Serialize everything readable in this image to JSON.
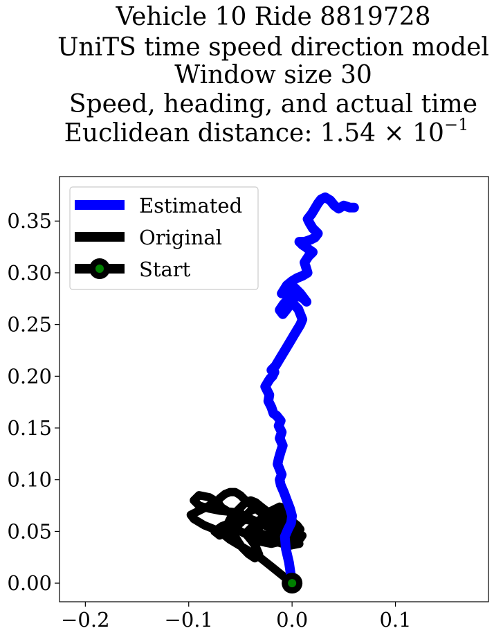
{
  "chart_data": {
    "type": "line",
    "title_lines": [
      "Vehicle 10 Ride 8819728",
      "UniTS time speed direction model",
      "Window size 30",
      "Speed, heading, and actual time",
      "Euclidean distance: 1.54 × 10^-1"
    ],
    "title_main": "Euclidean distance: 1.54 × 10",
    "title_exp": "−1",
    "xlim": [
      -0.225,
      0.19
    ],
    "ylim": [
      -0.018,
      0.393
    ],
    "x_ticks": [
      -0.2,
      -0.1,
      0.0,
      0.1
    ],
    "x_tick_labels": [
      "−0.2",
      "−0.1",
      "0.0",
      "0.1"
    ],
    "y_ticks": [
      0.0,
      0.05,
      0.1,
      0.15,
      0.2,
      0.25,
      0.3,
      0.35
    ],
    "y_tick_labels": [
      "0.00",
      "0.05",
      "0.10",
      "0.15",
      "0.20",
      "0.25",
      "0.30",
      "0.35"
    ],
    "grid": false,
    "legend_position": "top-left",
    "legend": [
      {
        "label": "Estimated",
        "color": "#0000ff"
      },
      {
        "label": "Original",
        "color": "#000000"
      },
      {
        "label": "Start",
        "color": "#000000",
        "marker_color": "#008000"
      }
    ],
    "series": [
      {
        "name": "Estimated",
        "color": "#0000ff",
        "x": [
          0.0,
          -0.003,
          -0.006,
          -0.007,
          -0.004,
          -0.001,
          0.0,
          -0.002,
          -0.005,
          -0.008,
          -0.011,
          -0.012,
          -0.01,
          -0.012,
          -0.014,
          -0.013,
          -0.011,
          -0.009,
          -0.012,
          -0.01,
          -0.013,
          -0.011,
          -0.015,
          -0.018,
          -0.02,
          -0.023,
          -0.022,
          -0.024,
          -0.026,
          -0.023,
          -0.021,
          -0.019,
          -0.017,
          -0.02,
          -0.016,
          -0.013,
          -0.01,
          -0.007,
          -0.004,
          -0.001,
          0.002,
          0.005,
          0.008,
          0.01,
          0.008,
          0.006,
          0.003,
          0.0,
          -0.005,
          -0.009,
          -0.012,
          -0.008,
          -0.004,
          0.0,
          0.004,
          0.01,
          0.014,
          0.008,
          0.003,
          -0.005,
          -0.01,
          -0.005,
          0.0,
          0.005,
          0.01,
          0.015,
          0.012,
          0.016,
          0.02,
          0.017,
          0.013,
          0.01,
          0.007,
          0.012,
          0.018,
          0.022,
          0.025,
          0.02,
          0.017,
          0.015,
          0.019,
          0.022,
          0.025,
          0.028,
          0.032,
          0.037,
          0.041,
          0.045,
          0.05,
          0.056,
          0.06
        ],
        "y": [
          0.0,
          0.02,
          0.033,
          0.045,
          0.052,
          0.058,
          0.065,
          0.072,
          0.08,
          0.088,
          0.095,
          0.1,
          0.105,
          0.11,
          0.115,
          0.12,
          0.127,
          0.133,
          0.14,
          0.146,
          0.152,
          0.157,
          0.162,
          0.164,
          0.17,
          0.176,
          0.182,
          0.186,
          0.19,
          0.195,
          0.198,
          0.2,
          0.204,
          0.206,
          0.21,
          0.215,
          0.22,
          0.225,
          0.23,
          0.235,
          0.24,
          0.245,
          0.25,
          0.255,
          0.26,
          0.265,
          0.268,
          0.272,
          0.265,
          0.26,
          0.264,
          0.27,
          0.274,
          0.276,
          0.278,
          0.276,
          0.272,
          0.28,
          0.285,
          0.283,
          0.28,
          0.288,
          0.292,
          0.295,
          0.297,
          0.3,
          0.31,
          0.316,
          0.32,
          0.322,
          0.325,
          0.327,
          0.33,
          0.33,
          0.332,
          0.334,
          0.338,
          0.343,
          0.348,
          0.352,
          0.357,
          0.362,
          0.367,
          0.371,
          0.373,
          0.37,
          0.365,
          0.362,
          0.365,
          0.363,
          0.363
        ]
      },
      {
        "name": "Original",
        "color": "#000000",
        "x": [
          0.0,
          -0.01,
          -0.02,
          -0.03,
          -0.04,
          -0.05,
          -0.06,
          -0.07,
          -0.085,
          -0.095,
          -0.098,
          -0.09,
          -0.08,
          -0.075,
          -0.08,
          -0.09,
          -0.095,
          -0.09,
          -0.08,
          -0.07,
          -0.06,
          -0.05,
          -0.045,
          -0.05,
          -0.06,
          -0.065,
          -0.07,
          -0.075,
          -0.068,
          -0.06,
          -0.05,
          -0.04,
          -0.03,
          -0.02,
          -0.01,
          0.0,
          0.007,
          -0.003,
          -0.015,
          -0.025,
          -0.035,
          -0.03,
          -0.02,
          -0.01,
          -0.005,
          -0.012,
          -0.02,
          -0.028,
          -0.035,
          -0.04,
          -0.045,
          -0.04,
          -0.035,
          -0.032,
          -0.036,
          -0.042,
          -0.048,
          -0.052,
          -0.055,
          -0.06,
          -0.063,
          -0.06,
          -0.055,
          -0.05,
          -0.045,
          -0.04,
          -0.035,
          -0.03,
          -0.025,
          -0.02,
          -0.015,
          -0.01,
          -0.005,
          0.0,
          0.005,
          0.008,
          0.005,
          0.0,
          -0.01,
          -0.02,
          -0.03,
          -0.04,
          -0.045,
          -0.05,
          -0.055,
          -0.06,
          -0.065,
          -0.07,
          -0.072,
          -0.068,
          -0.06,
          -0.05,
          -0.04,
          -0.03,
          -0.02,
          -0.012,
          -0.008,
          -0.012,
          -0.02,
          -0.03,
          -0.04,
          -0.05,
          -0.055,
          -0.05,
          -0.045,
          -0.04,
          -0.035,
          -0.03,
          -0.025,
          -0.02,
          -0.015,
          -0.01,
          -0.005,
          0.0,
          0.005,
          0.01,
          0.008,
          0.0,
          -0.01,
          -0.02,
          -0.03,
          -0.035
        ],
        "y": [
          0.0,
          0.008,
          0.016,
          0.024,
          0.03,
          0.036,
          0.042,
          0.05,
          0.056,
          0.062,
          0.066,
          0.07,
          0.075,
          0.08,
          0.083,
          0.085,
          0.08,
          0.075,
          0.072,
          0.07,
          0.069,
          0.068,
          0.063,
          0.058,
          0.055,
          0.05,
          0.046,
          0.05,
          0.055,
          0.058,
          0.06,
          0.062,
          0.058,
          0.052,
          0.046,
          0.042,
          0.038,
          0.036,
          0.04,
          0.046,
          0.05,
          0.056,
          0.062,
          0.067,
          0.072,
          0.074,
          0.07,
          0.064,
          0.058,
          0.053,
          0.048,
          0.042,
          0.035,
          0.028,
          0.024,
          0.028,
          0.034,
          0.04,
          0.045,
          0.05,
          0.056,
          0.062,
          0.068,
          0.073,
          0.078,
          0.08,
          0.078,
          0.074,
          0.07,
          0.066,
          0.062,
          0.058,
          0.054,
          0.052,
          0.05,
          0.052,
          0.056,
          0.06,
          0.064,
          0.068,
          0.072,
          0.076,
          0.08,
          0.085,
          0.088,
          0.088,
          0.086,
          0.082,
          0.078,
          0.073,
          0.068,
          0.064,
          0.06,
          0.057,
          0.055,
          0.05,
          0.045,
          0.04,
          0.038,
          0.04,
          0.045,
          0.05,
          0.055,
          0.06,
          0.065,
          0.07,
          0.072,
          0.068,
          0.064,
          0.06,
          0.056,
          0.054,
          0.052,
          0.05,
          0.048,
          0.046,
          0.043,
          0.041,
          0.04,
          0.042,
          0.046,
          0.05
        ]
      }
    ],
    "start_point": {
      "x": 0.0,
      "y": 0.0,
      "label": "Start"
    }
  }
}
